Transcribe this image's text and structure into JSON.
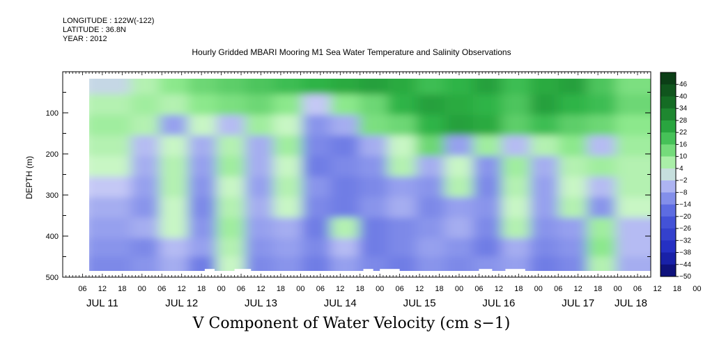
{
  "header": {
    "longitude": "LONGITUDE : 122W(-122)",
    "latitude": "LATITUDE : 36.8N",
    "year": "YEAR : 2012",
    "title": "Hourly Gridded MBARI Mooring M1 Sea Water Temperature and Salinity Observations"
  },
  "chart_data": {
    "type": "heatmap",
    "title": "Hourly Gridded MBARI Mooring M1 Sea Water Temperature and Salinity Observations",
    "xlabel": "V Component of Water Velocity (cm s−1)",
    "ylabel": "DEPTH (m)",
    "x_range_hours_from_jul11_00": [
      0,
      178
    ],
    "data_x_range_hours_from_jul11_00": [
      12,
      176
    ],
    "ylim": [
      500,
      0
    ],
    "data_depth_range": [
      20,
      485
    ],
    "y_ticks": [
      "100",
      "200",
      "300",
      "400",
      "500"
    ],
    "x_hour_ticks": [
      "06",
      "12",
      "18",
      "00",
      "06",
      "12",
      "18",
      "00",
      "06",
      "12",
      "18",
      "00",
      "06",
      "12",
      "18",
      "00",
      "06",
      "12",
      "18",
      "00",
      "06",
      "12",
      "18",
      "00",
      "06",
      "12",
      "18",
      "00",
      "06",
      "12",
      "18",
      "00"
    ],
    "x_day_labels": [
      "JUL 11",
      "JUL 12",
      "JUL 13",
      "JUL 14",
      "JUL 15",
      "JUL 16",
      "JUL 17",
      "JUL 18"
    ],
    "colorbar_levels": [
      "46",
      "40",
      "34",
      "28",
      "22",
      "16",
      "10",
      "4",
      "-2",
      "-8",
      "-14",
      "-20",
      "-26",
      "-32",
      "-38",
      "-44",
      "-50"
    ],
    "colorbar_range": [
      -50,
      52
    ],
    "colors": {
      "positive_high": "#0b3d12",
      "positive_mid": "#2ea83a",
      "positive_low": "#a8f0a0",
      "negative_low": "#a8aff0",
      "negative_mid": "#3a48d8",
      "negative_high": "#0a0a66"
    },
    "depth_bands_m": [
      30,
      80,
      130,
      180,
      230,
      280,
      330,
      380,
      430,
      470
    ],
    "value_grid_cm_s": [
      [
        0,
        6,
        10,
        14,
        16,
        18,
        20,
        22,
        24,
        26,
        24,
        20,
        22,
        26,
        20,
        24,
        26,
        18,
        12
      ],
      [
        6,
        8,
        6,
        10,
        12,
        14,
        10,
        -2,
        10,
        14,
        22,
        26,
        24,
        22,
        18,
        26,
        22,
        20,
        14
      ],
      [
        8,
        6,
        -8,
        4,
        -4,
        8,
        4,
        -10,
        -6,
        12,
        14,
        22,
        26,
        24,
        16,
        20,
        16,
        14,
        10
      ],
      [
        6,
        -4,
        4,
        -6,
        6,
        -6,
        8,
        -12,
        -14,
        -6,
        4,
        14,
        -8,
        8,
        -4,
        6,
        10,
        -4,
        8
      ],
      [
        4,
        -6,
        6,
        -8,
        8,
        -6,
        4,
        -14,
        -12,
        -10,
        6,
        -6,
        4,
        -10,
        8,
        -6,
        6,
        8,
        6
      ],
      [
        -2,
        -8,
        6,
        -10,
        4,
        -8,
        6,
        -10,
        -14,
        -12,
        -8,
        -10,
        6,
        -12,
        6,
        -8,
        4,
        -4,
        6
      ],
      [
        -6,
        -10,
        4,
        -12,
        6,
        -6,
        4,
        -12,
        -14,
        -10,
        -6,
        -12,
        -8,
        -10,
        4,
        -8,
        6,
        -10,
        4
      ],
      [
        -8,
        -6,
        4,
        -10,
        8,
        -8,
        -6,
        -14,
        6,
        -14,
        -12,
        -10,
        -6,
        -12,
        6,
        -10,
        -8,
        8,
        -4
      ],
      [
        -10,
        -12,
        -4,
        -8,
        6,
        -10,
        -8,
        -12,
        -4,
        -14,
        -12,
        -8,
        -10,
        -14,
        -6,
        -12,
        -10,
        10,
        -4
      ],
      [
        -12,
        -10,
        -6,
        -14,
        4,
        -12,
        -10,
        -14,
        -8,
        -12,
        -14,
        -10,
        -12,
        -10,
        -8,
        -14,
        -12,
        6,
        -6
      ]
    ],
    "missing_data_hours": [
      [
        43,
        46
      ],
      [
        52,
        57
      ],
      [
        91,
        94
      ],
      [
        96,
        102
      ],
      [
        126,
        130
      ],
      [
        134,
        140
      ]
    ]
  }
}
